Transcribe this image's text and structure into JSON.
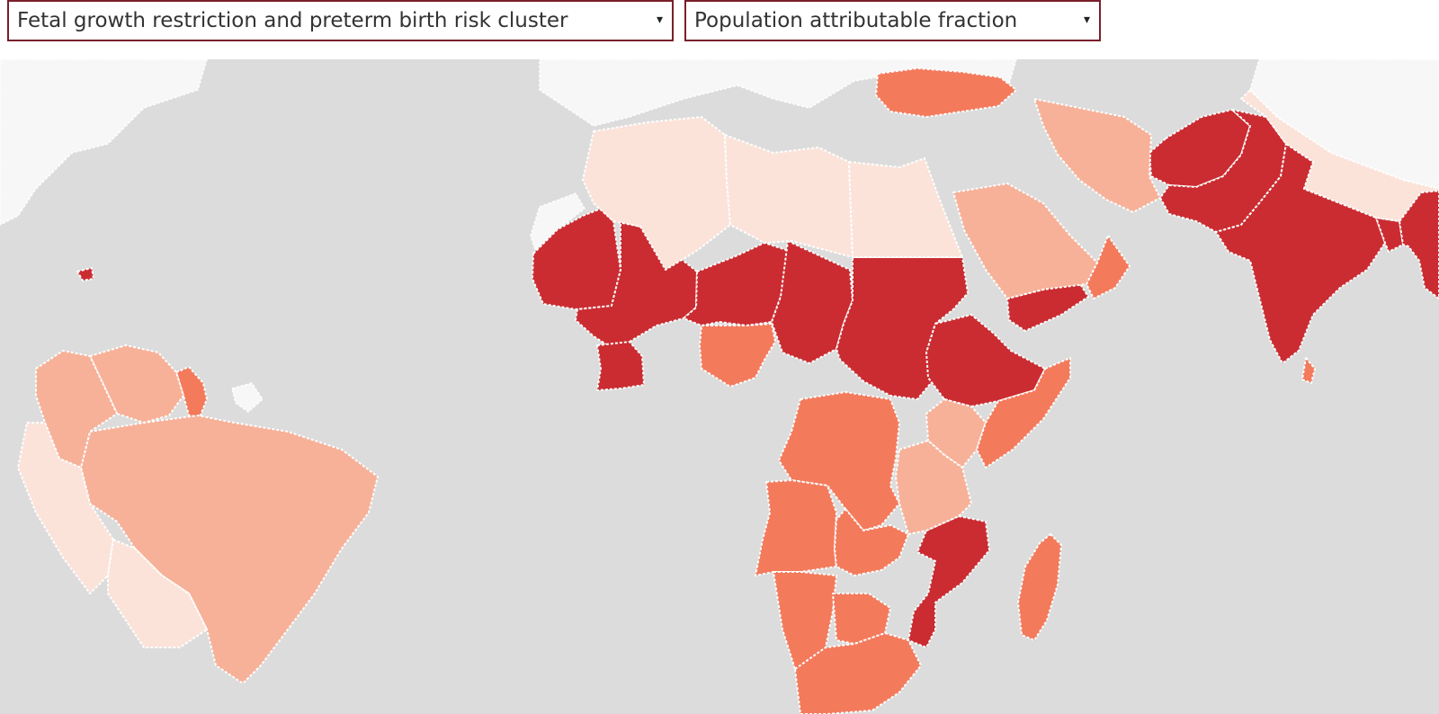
{
  "controls": {
    "risk_cluster_select": "Fetal growth restriction and preterm birth risk cluster",
    "metric_select": "Population attributable fraction",
    "dropdown_arrow": "▾"
  },
  "map": {
    "ocean_color": "#dcdcdc",
    "no_data_color": "#f7f7f7",
    "border_color": "#ffffff",
    "color_scale": {
      "lowest": "#fbe3da",
      "low": "#f7b198",
      "medium": "#f47a5c",
      "high": "#ca2c31"
    },
    "regions": [
      {
        "name": "Mauritania",
        "level": "high"
      },
      {
        "name": "Mali",
        "level": "high"
      },
      {
        "name": "Niger",
        "level": "high"
      },
      {
        "name": "Chad",
        "level": "high"
      },
      {
        "name": "Sudan",
        "level": "high"
      },
      {
        "name": "Ethiopia",
        "level": "high"
      },
      {
        "name": "Yemen",
        "level": "high"
      },
      {
        "name": "Afghanistan",
        "level": "high"
      },
      {
        "name": "Pakistan",
        "level": "high"
      },
      {
        "name": "India",
        "level": "high"
      },
      {
        "name": "Bangladesh",
        "level": "high"
      },
      {
        "name": "Myanmar",
        "level": "high"
      },
      {
        "name": "Mozambique",
        "level": "high"
      },
      {
        "name": "Cote d'Ivoire",
        "level": "high"
      },
      {
        "name": "Haiti",
        "level": "high"
      },
      {
        "name": "Nigeria",
        "level": "medium"
      },
      {
        "name": "DR Congo",
        "level": "medium"
      },
      {
        "name": "Angola",
        "level": "medium"
      },
      {
        "name": "Zambia",
        "level": "medium"
      },
      {
        "name": "Namibia",
        "level": "medium"
      },
      {
        "name": "Botswana",
        "level": "medium"
      },
      {
        "name": "South Africa",
        "level": "medium"
      },
      {
        "name": "Madagascar",
        "level": "medium"
      },
      {
        "name": "Guyana",
        "level": "medium"
      },
      {
        "name": "Turkey",
        "level": "medium"
      },
      {
        "name": "Oman",
        "level": "medium"
      },
      {
        "name": "Sri Lanka",
        "level": "medium"
      },
      {
        "name": "Kenya",
        "level": "low"
      },
      {
        "name": "Tanzania",
        "level": "low"
      },
      {
        "name": "Somalia",
        "level": "medium"
      },
      {
        "name": "Saudi Arabia",
        "level": "low"
      },
      {
        "name": "Iran",
        "level": "low"
      },
      {
        "name": "Brazil",
        "level": "low"
      },
      {
        "name": "Venezuela",
        "level": "low"
      },
      {
        "name": "Colombia",
        "level": "low"
      },
      {
        "name": "Algeria",
        "level": "lowest"
      },
      {
        "name": "Libya",
        "level": "lowest"
      },
      {
        "name": "Egypt",
        "level": "lowest"
      },
      {
        "name": "Peru",
        "level": "lowest"
      },
      {
        "name": "Bolivia",
        "level": "lowest"
      },
      {
        "name": "China",
        "level": "lowest"
      }
    ]
  }
}
